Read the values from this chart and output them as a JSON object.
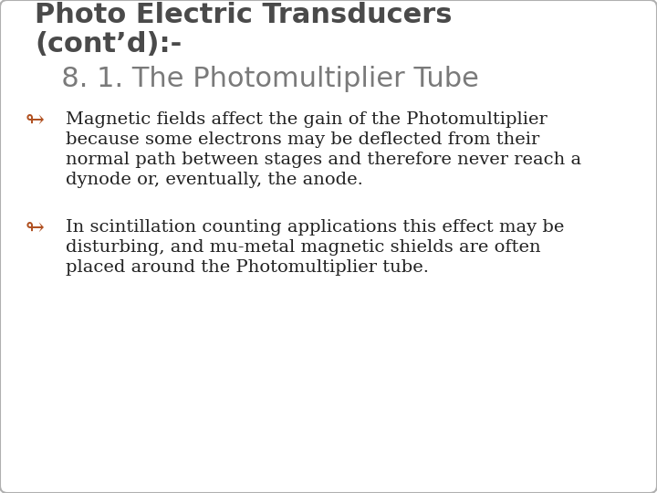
{
  "background_color": "#ffffff",
  "border_color": "#b0b0b0",
  "title_line1": "Photo Electric Transducers",
  "title_line2": "(cont’d):-",
  "subtitle": "   8. 1. The Photomultiplier Tube",
  "title_color": "#4a4a4a",
  "subtitle_color": "#7a7a7a",
  "bullet_color": "#b05020",
  "text_color": "#222222",
  "bullet_symbol": "↬",
  "bullet1_line1": "Magnetic fields affect the gain of the Photomultiplier",
  "bullet1_line2": "because some electrons may be deflected from their",
  "bullet1_line3": "normal path between stages and therefore never reach a",
  "bullet1_line4": "dynode or, eventually, the anode.",
  "bullet2_line1": "In scintillation counting applications this effect may be",
  "bullet2_line2": "disturbing, and mu-metal magnetic shields are often",
  "bullet2_line3": "placed around the Photomultiplier tube.",
  "title_fontsize": 22,
  "subtitle_fontsize": 22,
  "body_fontsize": 14,
  "bullet_fontsize": 18
}
